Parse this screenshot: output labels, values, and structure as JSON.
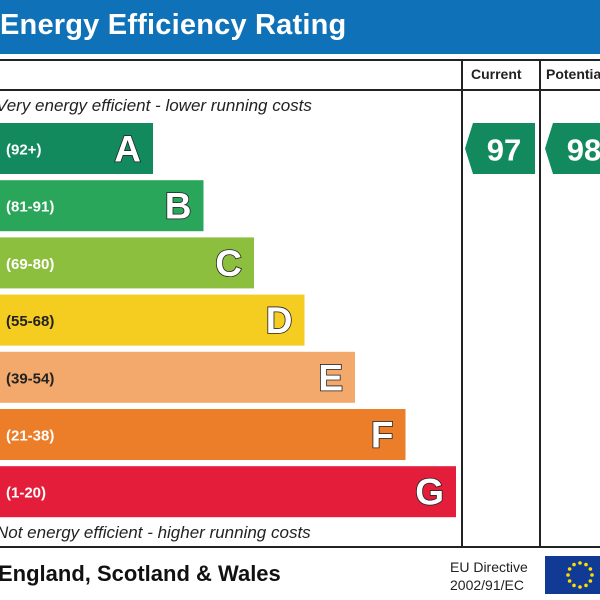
{
  "header": {
    "title": "Energy Efficiency Rating"
  },
  "columns": {
    "current": "Current",
    "potential": "Potential"
  },
  "notes": {
    "top": "Very energy efficient - lower running costs",
    "bottom": "Not energy efficient - higher running costs"
  },
  "footer": {
    "country": "England, Scotland & Wales",
    "directive_line1": "EU Directive",
    "directive_line2": "2002/91/EC"
  },
  "chart_data": {
    "type": "bar",
    "title": "Energy Efficiency Rating",
    "categories": [
      "A",
      "B",
      "C",
      "D",
      "E",
      "F",
      "G"
    ],
    "ranges": [
      "(92+)",
      "(81-91)",
      "(69-80)",
      "(55-68)",
      "(39-54)",
      "(21-38)",
      "(1-20)"
    ],
    "colors": [
      "#128a5e",
      "#2aa65a",
      "#8dbf3f",
      "#f5cc20",
      "#f2a96b",
      "#ec7d29",
      "#e31d3a"
    ],
    "current": {
      "value": 97,
      "band": "A",
      "color": "#128a5e"
    },
    "potential": {
      "value": 98,
      "band": "A",
      "color": "#128a5e"
    }
  }
}
